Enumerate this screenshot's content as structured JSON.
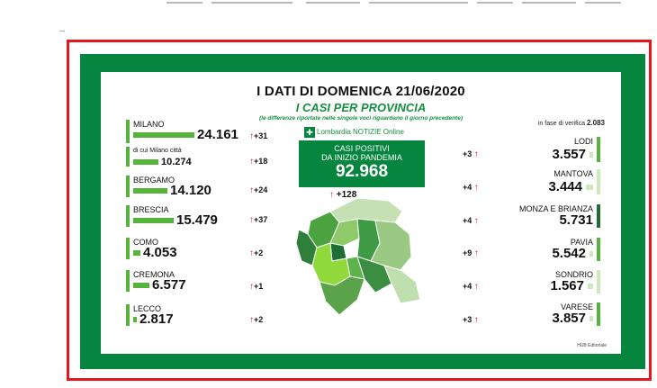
{
  "title": "I DATI DI DOMENICA 21/06/2020",
  "subtitle": "I CASI PER PROVINCIA",
  "note": "(le differenze riportate nelle singole voci riguardano il giorno precedente)",
  "verification": {
    "label": "in fase di verifica",
    "value": "2.083"
  },
  "brand": {
    "logo": "✚",
    "name": "Lombardia NOTIZIE Online"
  },
  "total": {
    "line1": "CASI POSITIVI",
    "line2": "DA INIZIO PANDEMIA",
    "value": "92.968",
    "delta": "+128",
    "arrow": "↑"
  },
  "left_provinces": [
    {
      "name": "MILANO",
      "value": "24.161",
      "delta": "+31",
      "arrow": "↑"
    },
    {
      "name": "di cui Milano città",
      "value": "10.274",
      "delta": "+18",
      "arrow": "↑"
    },
    {
      "name": "BERGAMO",
      "value": "14.120",
      "delta": "+24",
      "arrow": "↑"
    },
    {
      "name": "BRESCIA",
      "value": "15.479",
      "delta": "+37",
      "arrow": "↑"
    },
    {
      "name": "COMO",
      "value": "4.053",
      "delta": "+2",
      "arrow": "↑"
    },
    {
      "name": "CREMONA",
      "value": "6.577",
      "delta": "+1",
      "arrow": "↑"
    },
    {
      "name": "LECCO",
      "value": "2.817",
      "delta": "+2",
      "arrow": "↑"
    }
  ],
  "right_provinces": [
    {
      "name": "LODI",
      "value": "3.557",
      "delta": "+3",
      "arrow": "↑"
    },
    {
      "name": "MANTOVA",
      "value": "3.444",
      "delta": "+4",
      "arrow": "↑"
    },
    {
      "name": "MONZA E BRIANZA",
      "value": "5.731",
      "delta": "+4",
      "arrow": "↑"
    },
    {
      "name": "PAVIA",
      "value": "5.542",
      "delta": "+9",
      "arrow": "↑"
    },
    {
      "name": "SONDRIO",
      "value": "1.567",
      "delta": "+4",
      "arrow": "↑"
    },
    {
      "name": "VARESE",
      "value": "3.857",
      "delta": "+3",
      "arrow": "↑"
    }
  ],
  "credit": "HUB Editoriale",
  "colors": {
    "green_frame": "#05853d",
    "red_border": "#e1191f",
    "bar_green": "#56b33b",
    "accent_green": "#15903f",
    "arrow_red": "#d7262b"
  }
}
